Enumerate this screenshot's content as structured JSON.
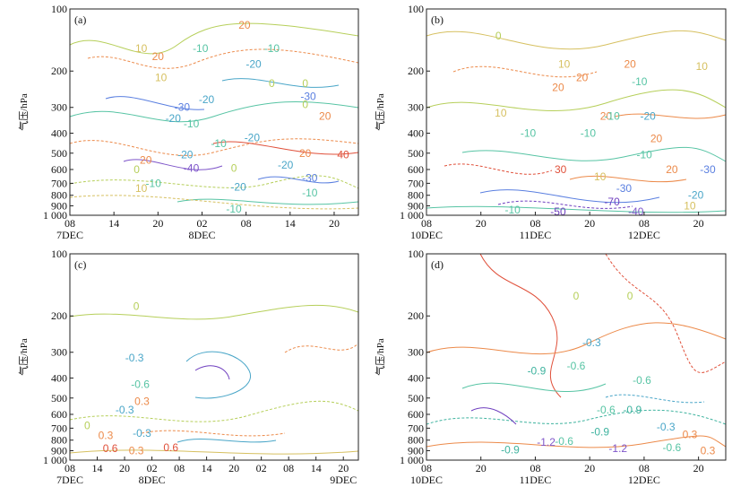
{
  "chart_data": [
    {
      "type": "contour",
      "panel_label": "(a)",
      "ylabel": "气压/hPa",
      "yticks": [
        "100",
        "200",
        "300",
        "400",
        "500",
        "600",
        "700",
        "800",
        "900",
        "1 000"
      ],
      "ytick_values": [
        100,
        200,
        300,
        400,
        500,
        600,
        700,
        800,
        900,
        1000
      ],
      "y_scale": "log",
      "ylim": [
        1000,
        100
      ],
      "xticks": [
        "08",
        "14",
        "20",
        "02",
        "08",
        "14",
        "20"
      ],
      "xdates": [
        "7DEC",
        "",
        "",
        "8DEC",
        "",
        "",
        ""
      ],
      "contour_levels": [
        -40,
        -30,
        -20,
        -10,
        0,
        10,
        20,
        40
      ],
      "contour_labels": [
        {
          "text": "10",
          "x": 0.47,
          "y": 155
        },
        {
          "text": "20",
          "x": 0.58,
          "y": 170
        },
        {
          "text": "10",
          "x": 0.6,
          "y": 215
        },
        {
          "text": "-10",
          "x": 0.86,
          "y": 155
        },
        {
          "text": "-20",
          "x": 0.9,
          "y": 275
        },
        {
          "text": "-30",
          "x": 0.74,
          "y": 300
        },
        {
          "text": "-20",
          "x": 0.68,
          "y": 340
        },
        {
          "text": "-10",
          "x": 0.8,
          "y": 360
        },
        {
          "text": "20",
          "x": 0.5,
          "y": 540
        },
        {
          "text": "0",
          "x": 0.44,
          "y": 600
        },
        {
          "text": "-10",
          "x": 0.55,
          "y": 700
        },
        {
          "text": "-20",
          "x": 0.76,
          "y": 510
        },
        {
          "text": "-40",
          "x": 0.8,
          "y": 590
        },
        {
          "text": "-10",
          "x": 0.98,
          "y": 450
        },
        {
          "text": "-20",
          "x": 1.21,
          "y": 185
        },
        {
          "text": "-10",
          "x": 1.33,
          "y": 155
        },
        {
          "text": "20",
          "x": 1.15,
          "y": 120
        },
        {
          "text": "-20",
          "x": 1.2,
          "y": 420
        },
        {
          "text": "-20",
          "x": 1.42,
          "y": 570
        },
        {
          "text": "-30",
          "x": 1.58,
          "y": 660
        },
        {
          "text": "-20",
          "x": 1.11,
          "y": 730
        },
        {
          "text": "0",
          "x": 1.08,
          "y": 590
        },
        {
          "text": "-10",
          "x": 1.08,
          "y": 930
        },
        {
          "text": "-10",
          "x": 1.58,
          "y": 780
        },
        {
          "text": "0",
          "x": 1.33,
          "y": 230
        },
        {
          "text": "0",
          "x": 1.55,
          "y": 230
        },
        {
          "text": "-30",
          "x": 1.57,
          "y": 265
        },
        {
          "text": "0",
          "x": 1.55,
          "y": 290
        },
        {
          "text": "20",
          "x": 1.68,
          "y": 330
        },
        {
          "text": "20",
          "x": 1.55,
          "y": 500
        },
        {
          "text": "40",
          "x": 1.8,
          "y": 510
        },
        {
          "text": "10",
          "x": 0.47,
          "y": 740
        }
      ]
    },
    {
      "type": "contour",
      "panel_label": "(b)",
      "ylabel": "气压/hPa",
      "yticks": [
        "100",
        "200",
        "300",
        "400",
        "500",
        "600",
        "700",
        "800",
        "900",
        "1 000"
      ],
      "ytick_values": [
        100,
        200,
        300,
        400,
        500,
        600,
        700,
        800,
        900,
        1000
      ],
      "y_scale": "log",
      "ylim": [
        1000,
        100
      ],
      "xticks": [
        "08",
        "20",
        "08",
        "20",
        "08",
        "20"
      ],
      "xdates": [
        "10DEC",
        "",
        "11DEC",
        "",
        "12DEC",
        ""
      ],
      "contour_levels": [
        -70,
        -50,
        -40,
        -30,
        -20,
        -10,
        0,
        10,
        20,
        30
      ],
      "contour_labels": [
        {
          "text": "0",
          "x": 0.6,
          "y": 135
        },
        {
          "text": "10",
          "x": 1.15,
          "y": 185
        },
        {
          "text": "20",
          "x": 1.3,
          "y": 215
        },
        {
          "text": "20",
          "x": 1.7,
          "y": 185
        },
        {
          "text": "-10",
          "x": 1.78,
          "y": 225
        },
        {
          "text": "10",
          "x": 2.3,
          "y": 190
        },
        {
          "text": "10",
          "x": 0.62,
          "y": 320
        },
        {
          "text": "20",
          "x": 1.1,
          "y": 240
        },
        {
          "text": "20",
          "x": 1.5,
          "y": 330
        },
        {
          "text": "-20",
          "x": 1.85,
          "y": 330
        },
        {
          "text": "-10",
          "x": 1.55,
          "y": 330
        },
        {
          "text": "-10",
          "x": 0.85,
          "y": 400
        },
        {
          "text": "-10",
          "x": 1.35,
          "y": 400
        },
        {
          "text": "20",
          "x": 1.92,
          "y": 425
        },
        {
          "text": "-10",
          "x": 1.82,
          "y": 510
        },
        {
          "text": "30",
          "x": 1.12,
          "y": 600
        },
        {
          "text": "10",
          "x": 1.45,
          "y": 650
        },
        {
          "text": "20",
          "x": 2.05,
          "y": 600
        },
        {
          "text": "-30",
          "x": 2.35,
          "y": 600
        },
        {
          "text": "-30",
          "x": 1.65,
          "y": 740
        },
        {
          "text": "-20",
          "x": 2.25,
          "y": 800
        },
        {
          "text": "-70",
          "x": 1.55,
          "y": 860
        },
        {
          "text": "-50",
          "x": 1.1,
          "y": 960
        },
        {
          "text": "-40",
          "x": 1.75,
          "y": 960
        },
        {
          "text": "-10",
          "x": 0.72,
          "y": 940
        },
        {
          "text": "10",
          "x": 2.2,
          "y": 900
        }
      ]
    },
    {
      "type": "contour",
      "panel_label": "(c)",
      "ylabel": "气压/hPa",
      "yticks": [
        "100",
        "200",
        "300",
        "400",
        "500",
        "600",
        "700",
        "800",
        "900",
        "1 000"
      ],
      "ytick_values": [
        100,
        200,
        300,
        400,
        500,
        600,
        700,
        800,
        900,
        1000
      ],
      "y_scale": "log",
      "ylim": [
        1000,
        100
      ],
      "xticks": [
        "08",
        "14",
        "20",
        "02",
        "08",
        "14",
        "20",
        "02",
        "08",
        "14",
        "20"
      ],
      "xdates": [
        "7DEC",
        "",
        "",
        "8DEC",
        "",
        "",
        "",
        "",
        "",
        "",
        "9DEC"
      ],
      "contour_levels": [
        -0.6,
        -0.3,
        0,
        0.3,
        0.6
      ],
      "contour_labels": [
        {
          "text": "0",
          "x": 1.15,
          "y": 180
        },
        {
          "text": "-0.3",
          "x": 1.12,
          "y": 320
        },
        {
          "text": "-0.6",
          "x": 1.22,
          "y": 430
        },
        {
          "text": "-0.3",
          "x": 0.95,
          "y": 570
        },
        {
          "text": "0",
          "x": 0.3,
          "y": 680
        },
        {
          "text": "0.3",
          "x": 1.25,
          "y": 520
        },
        {
          "text": "-0.3",
          "x": 1.25,
          "y": 740
        },
        {
          "text": "0.3",
          "x": 0.62,
          "y": 760
        },
        {
          "text": "0.6",
          "x": 0.7,
          "y": 880
        },
        {
          "text": "0.3",
          "x": 1.15,
          "y": 900
        },
        {
          "text": "0.6",
          "x": 1.75,
          "y": 870
        }
      ]
    },
    {
      "type": "contour",
      "panel_label": "(d)",
      "ylabel": "气压/hPa",
      "yticks": [
        "100",
        "200",
        "300",
        "400",
        "500",
        "600",
        "700",
        "800",
        "900",
        "1 000"
      ],
      "ytick_values": [
        100,
        200,
        300,
        400,
        500,
        600,
        700,
        800,
        900,
        1000
      ],
      "y_scale": "log",
      "ylim": [
        1000,
        100
      ],
      "xticks": [
        "08",
        "20",
        "08",
        "20",
        "08",
        "20"
      ],
      "xdates": [
        "10DEC",
        "",
        "11DEC",
        "",
        "12DEC",
        ""
      ],
      "contour_levels": [
        -1.2,
        -0.9,
        -0.6,
        -0.3,
        0,
        0.3
      ],
      "contour_labels": [
        {
          "text": "0",
          "x": 1.25,
          "y": 160
        },
        {
          "text": "0",
          "x": 1.7,
          "y": 160
        },
        {
          "text": "-0.3",
          "x": 1.38,
          "y": 270
        },
        {
          "text": "-0.6",
          "x": 1.25,
          "y": 350
        },
        {
          "text": "-0.9",
          "x": 0.92,
          "y": 370
        },
        {
          "text": "-0.6",
          "x": 1.8,
          "y": 410
        },
        {
          "text": "-0.6",
          "x": 1.5,
          "y": 570
        },
        {
          "text": "-0.9",
          "x": 1.72,
          "y": 570
        },
        {
          "text": "-0.3",
          "x": 2.0,
          "y": 690
        },
        {
          "text": "0.3",
          "x": 2.2,
          "y": 750
        },
        {
          "text": "-1.2",
          "x": 1.0,
          "y": 820
        },
        {
          "text": "-0.6",
          "x": 1.15,
          "y": 810
        },
        {
          "text": "-0.9",
          "x": 1.45,
          "y": 730
        },
        {
          "text": "-1.2",
          "x": 1.6,
          "y": 880
        },
        {
          "text": "-0.9",
          "x": 0.7,
          "y": 890
        },
        {
          "text": "-0.6",
          "x": 2.05,
          "y": 870
        },
        {
          "text": "0.3",
          "x": 2.35,
          "y": 900
        }
      ]
    }
  ],
  "style": {
    "level_colors": {
      "-70": "#6f3fbf",
      "-50": "#6f3fbf",
      "-40": "#7e55c9",
      "-30": "#5a7fe0",
      "-20": "#4aa6c8",
      "-10": "#57c4a4",
      "0": "#b6cf5a",
      "10": "#d6c060",
      "20": "#ec8a4a",
      "30": "#e0503a",
      "40": "#e0503a",
      "-1.2": "#7e55c9",
      "-0.9": "#3fb39f",
      "-0.6": "#57c4a4",
      "-0.3": "#4aa6c8",
      "0.3": "#ec8a4a",
      "0.6": "#e0503a",
      "0.0": "#b6cf5a"
    },
    "axis_color": "#222222"
  }
}
